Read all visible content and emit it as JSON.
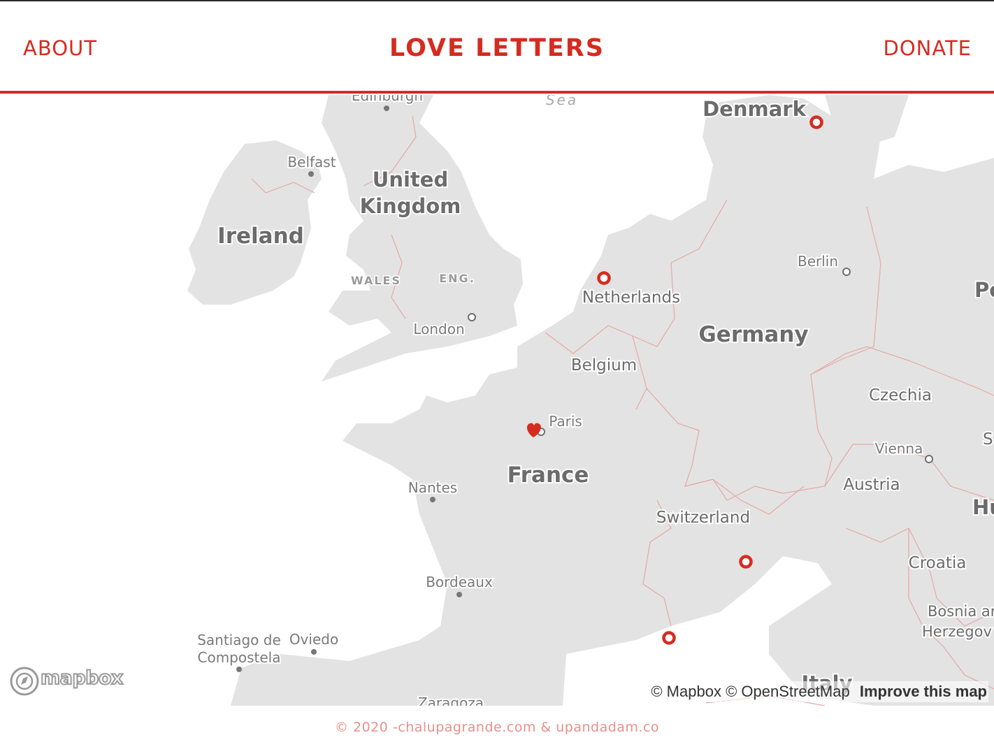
{
  "header": {
    "about_label": "ABOUT",
    "title": "LOVE LETTERS",
    "donate_label": "DONATE"
  },
  "map": {
    "countries": {
      "ireland": "Ireland",
      "uk_line1": "United",
      "uk_line2": "Kingdom",
      "denmark": "Denmark",
      "netherlands": "Netherlands",
      "belgium": "Belgium",
      "germany": "Germany",
      "czechia": "Czechia",
      "austria": "Austria",
      "switzerland": "Switzerland",
      "france": "France",
      "croatia": "Croatia",
      "bosnia_line1": "Bosnia ar",
      "bosnia_line2": "Herzegov",
      "italy": "Italy",
      "poland_partial": "Po",
      "hungary_partial": "Hu",
      "slovakia_partial": "S"
    },
    "regions": {
      "wales": "WALES",
      "england": "ENG."
    },
    "cities": {
      "edinburgh": "Edinburgh",
      "belfast": "Belfast",
      "london": "London",
      "paris": "Paris",
      "berlin": "Berlin",
      "vienna": "Vienna",
      "nantes": "Nantes",
      "bordeaux": "Bordeaux",
      "santiago_line1": "Santiago de",
      "santiago_line2": "Compostela",
      "oviedo": "Oviedo",
      "zaragoza": "Zaragoza"
    },
    "sea": "Sea",
    "markers": [
      {
        "type": "heart",
        "place": "Paris",
        "color": "#d62b1f"
      },
      {
        "type": "ring",
        "place": "Netherlands",
        "color": "#d62b1f"
      },
      {
        "type": "ring",
        "place": "Denmark",
        "color": "#d62b1f"
      },
      {
        "type": "ring",
        "place": "Northern Italy",
        "color": "#d62b1f"
      },
      {
        "type": "ring",
        "place": "Southern France",
        "color": "#d62b1f"
      }
    ],
    "logo": "mapbox",
    "attribution": {
      "mapbox": "© Mapbox",
      "osm": "© OpenStreetMap",
      "improve": "Improve this map"
    }
  },
  "footer": {
    "text": "© 2020 -chalupagrande.com & upandadam.co"
  },
  "colors": {
    "accent": "#d62b1f",
    "land": "#e3e3e3",
    "border": "#e7a7a7",
    "footer_text": "#e8908a"
  }
}
